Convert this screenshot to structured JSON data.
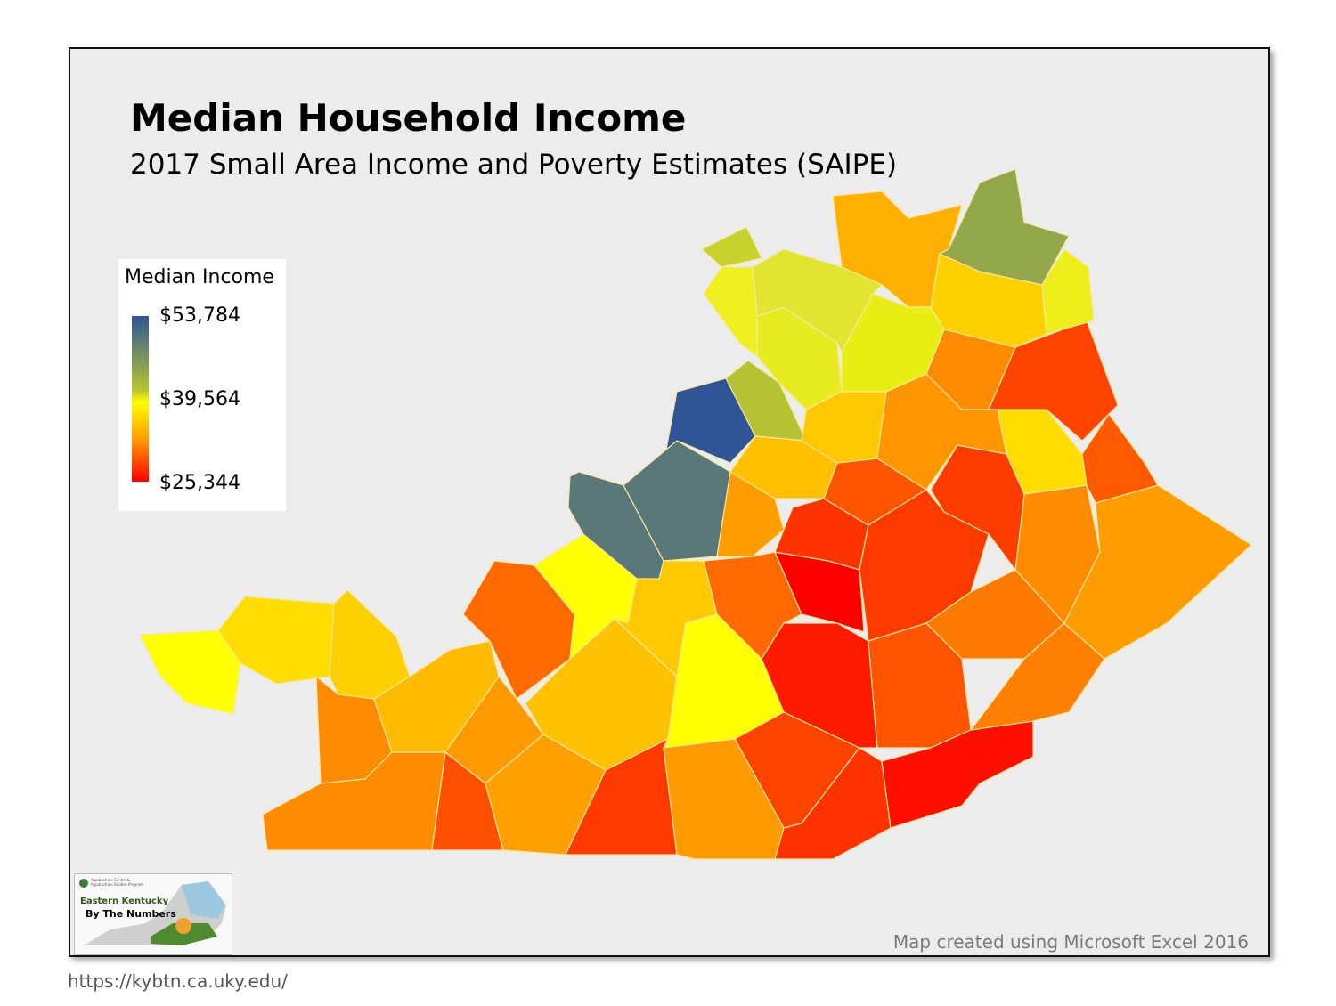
{
  "title": "Median Household Income",
  "subtitle": "2017 Small Area Income and Poverty Estimates (SAIPE)",
  "legend": {
    "title": "Median Income",
    "max": "$53,784",
    "mid": "$39,564",
    "min": "$25,344",
    "colors": {
      "max": "#2f5597",
      "mid": "#ffff00",
      "min": "#ff0000"
    }
  },
  "logo": {
    "org": "Appalachian Center & Appalachian Studies Program",
    "line1": "Eastern Kentucky",
    "line2": "By The Numbers"
  },
  "credit": "Map created using Microsoft Excel 2016",
  "url": "https://kybtn.ca.uky.edu/"
}
